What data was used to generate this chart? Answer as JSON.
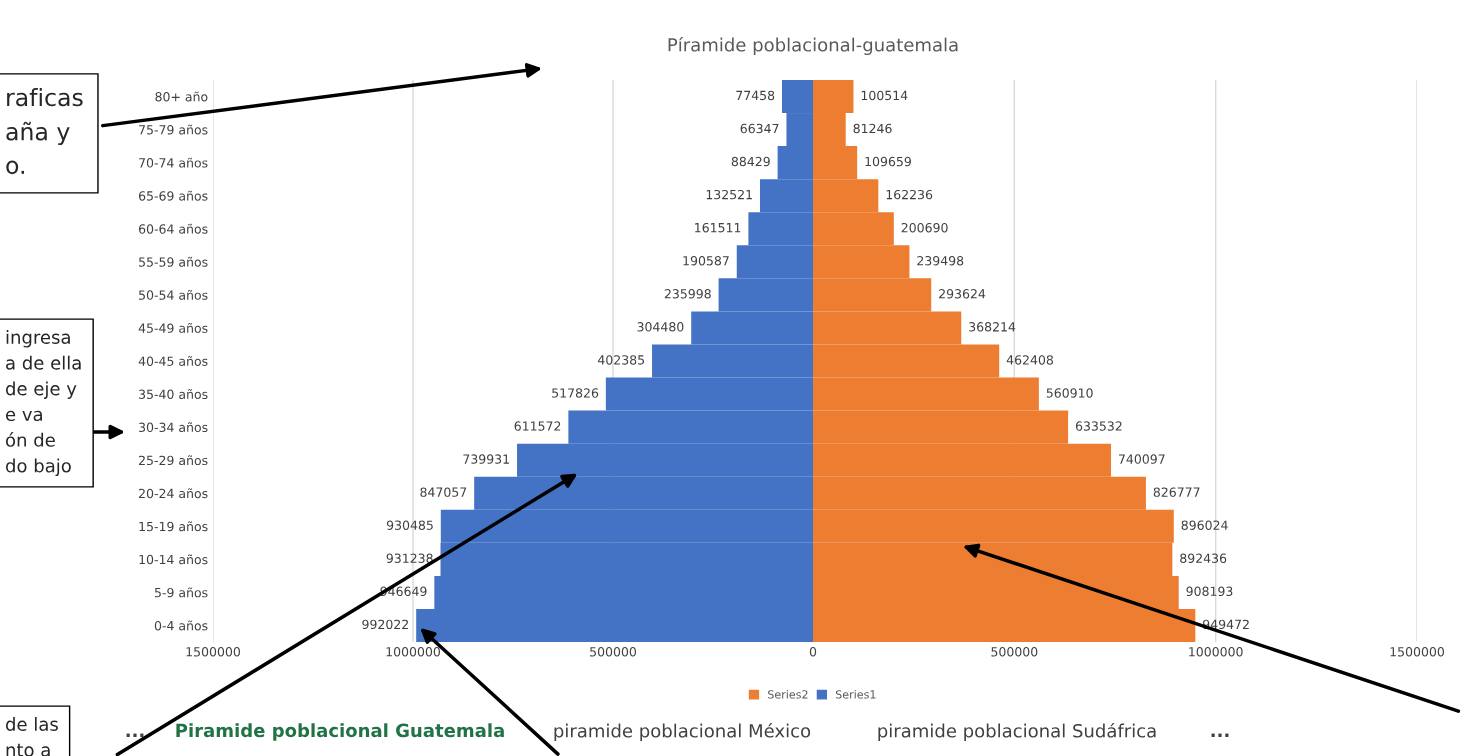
{
  "chart_data": [
    {
      "type": "bar",
      "orientation": "horizontal",
      "title": "Píramide poblacional-guatemala",
      "categories": [
        "80+ año",
        "75-79 años",
        "70-74 años",
        "65-69 años",
        "60-64 años",
        "55-59 años",
        "50-54 años",
        "45-49 años",
        "40-45 años",
        "35-40 años",
        "30-34 años",
        "25-29 años",
        "20-24 años",
        "15-19 años",
        "10-14 años",
        "5-9 años",
        "0-4 años"
      ],
      "series": [
        {
          "name": "Series1",
          "color": "#4472c4",
          "values": [
            77458,
            66347,
            88429,
            132521,
            161511,
            190587,
            235998,
            304480,
            402385,
            517826,
            611572,
            739931,
            847057,
            930485,
            931238,
            946649,
            992022
          ]
        }
      ],
      "data_labels": true,
      "xlim": [
        1500000,
        0
      ],
      "xticks": [
        1500000,
        1000000,
        500000
      ],
      "grid": "x",
      "legend": "bottom",
      "annotations": [
        "raficas\naña y\no.",
        "ingresa\na de ella\nde eje y\ne va\nón de\ndo bajo",
        "de las\nnto a",
        "...",
        "Piramide poblacional Guatemala",
        "piramide poblacional México",
        "piramide poblacional Sudáfrica",
        "..."
      ]
    },
    {
      "type": "bar",
      "orientation": "horizontal",
      "series": [
        {
          "name": "Series2",
          "color": "#ed7d31",
          "values": [
            100514,
            81246,
            109659,
            162236,
            200690,
            239498,
            293624,
            368214,
            462408,
            560910,
            633532,
            740097,
            826777,
            896024,
            892436,
            908193,
            949472
          ]
        }
      ],
      "data_labels": true,
      "xlim": [
        0,
        1500000
      ],
      "xticks": [
        0,
        500000,
        1000000,
        1500000
      ],
      "grid": "x",
      "legend": "bottom",
      "tick_labels": "x"
    }
  ]
}
